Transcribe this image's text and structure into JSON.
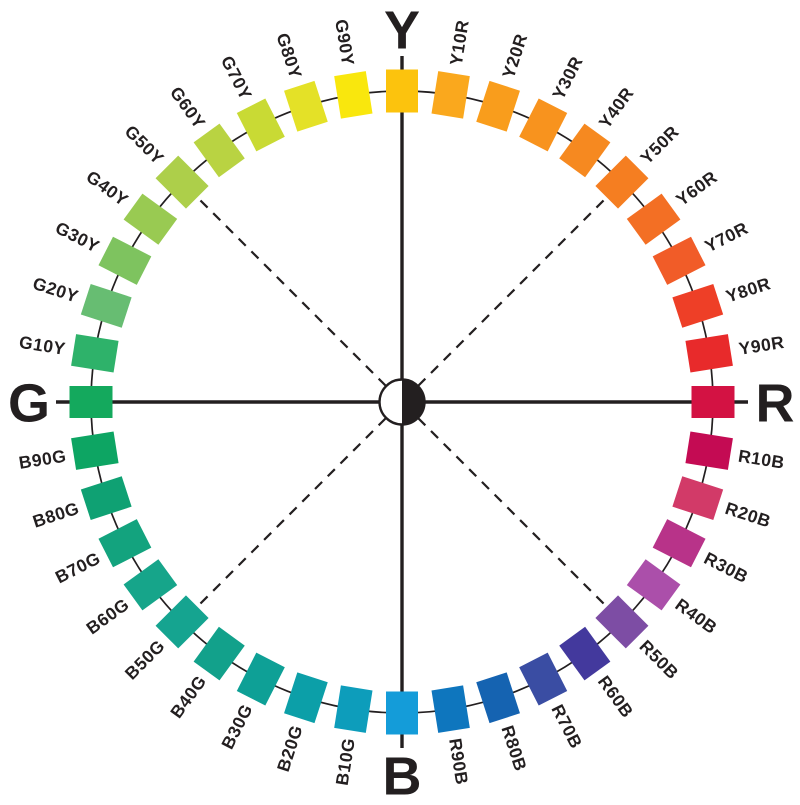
{
  "figure": {
    "background": "#ffffff",
    "line_color": "#231f20",
    "center_symbol": {
      "left_half": "#ffffff",
      "right_half": "#231f20"
    }
  },
  "wheel": {
    "type": "ncs-color-circle",
    "major_axes": [
      "Y",
      "R",
      "B",
      "G"
    ],
    "dashed_diagonal_angles": [
      45,
      135,
      225,
      315
    ],
    "segments": [
      {
        "label": "Y",
        "angle": 0,
        "color": "#FCC30D",
        "major": true
      },
      {
        "label": "Y10R",
        "angle": 9,
        "color": "#FAA81D",
        "major": false
      },
      {
        "label": "Y20R",
        "angle": 18,
        "color": "#F99D1C",
        "major": false
      },
      {
        "label": "Y30R",
        "angle": 27,
        "color": "#F8931E",
        "major": false
      },
      {
        "label": "Y40R",
        "angle": 36,
        "color": "#F68920",
        "major": false
      },
      {
        "label": "Y50R",
        "angle": 45,
        "color": "#F57E21",
        "major": false
      },
      {
        "label": "Y60R",
        "angle": 54,
        "color": "#F36F24",
        "major": false
      },
      {
        "label": "Y70R",
        "angle": 63,
        "color": "#F15C28",
        "major": false
      },
      {
        "label": "Y80R",
        "angle": 72,
        "color": "#EE3F27",
        "major": false
      },
      {
        "label": "Y90R",
        "angle": 81,
        "color": "#E82A2B",
        "major": false
      },
      {
        "label": "R",
        "angle": 90,
        "color": "#D31243",
        "major": true
      },
      {
        "label": "R10B",
        "angle": 99,
        "color": "#C40B53",
        "major": false
      },
      {
        "label": "R20B",
        "angle": 108,
        "color": "#D23A68",
        "major": false
      },
      {
        "label": "R30B",
        "angle": 117,
        "color": "#B83389",
        "major": false
      },
      {
        "label": "R40B",
        "angle": 126,
        "color": "#AB4FAA",
        "major": false
      },
      {
        "label": "R50B",
        "angle": 135,
        "color": "#7D4DA4",
        "major": false
      },
      {
        "label": "R60B",
        "angle": 144,
        "color": "#43399D",
        "major": false
      },
      {
        "label": "R70B",
        "angle": 153,
        "color": "#3A4DA3",
        "major": false
      },
      {
        "label": "R80B",
        "angle": 162,
        "color": "#1563B1",
        "major": false
      },
      {
        "label": "R90B",
        "angle": 171,
        "color": "#0E76BE",
        "major": false
      },
      {
        "label": "B",
        "angle": 180,
        "color": "#149CD9",
        "major": true
      },
      {
        "label": "B10G",
        "angle": 189,
        "color": "#0D9DBB",
        "major": false
      },
      {
        "label": "B20G",
        "angle": 198,
        "color": "#0C9FA8",
        "major": false
      },
      {
        "label": "B30G",
        "angle": 207,
        "color": "#0EA096",
        "major": false
      },
      {
        "label": "B40G",
        "angle": 216,
        "color": "#12A18B",
        "major": false
      },
      {
        "label": "B50G",
        "angle": 225,
        "color": "#15A490",
        "major": false
      },
      {
        "label": "B60G",
        "angle": 234,
        "color": "#16A58A",
        "major": false
      },
      {
        "label": "B70G",
        "angle": 243,
        "color": "#13A37E",
        "major": false
      },
      {
        "label": "B80G",
        "angle": 252,
        "color": "#0FA173",
        "major": false
      },
      {
        "label": "B90G",
        "angle": 261,
        "color": "#0DA563",
        "major": false
      },
      {
        "label": "G",
        "angle": 270,
        "color": "#14A95D",
        "major": true
      },
      {
        "label": "G10Y",
        "angle": 279,
        "color": "#2EB26A",
        "major": false
      },
      {
        "label": "G20Y",
        "angle": 288,
        "color": "#67BD72",
        "major": false
      },
      {
        "label": "G30Y",
        "angle": 297,
        "color": "#7EC35F",
        "major": false
      },
      {
        "label": "G40Y",
        "angle": 306,
        "color": "#99CA52",
        "major": false
      },
      {
        "label": "G50Y",
        "angle": 315,
        "color": "#ADCF4A",
        "major": false
      },
      {
        "label": "G60Y",
        "angle": 324,
        "color": "#B9D342",
        "major": false
      },
      {
        "label": "G70Y",
        "angle": 333,
        "color": "#C9DA34",
        "major": false
      },
      {
        "label": "G80Y",
        "angle": 342,
        "color": "#E4E127",
        "major": false
      },
      {
        "label": "G90Y",
        "angle": 351,
        "color": "#F9E70D",
        "major": false
      }
    ]
  }
}
